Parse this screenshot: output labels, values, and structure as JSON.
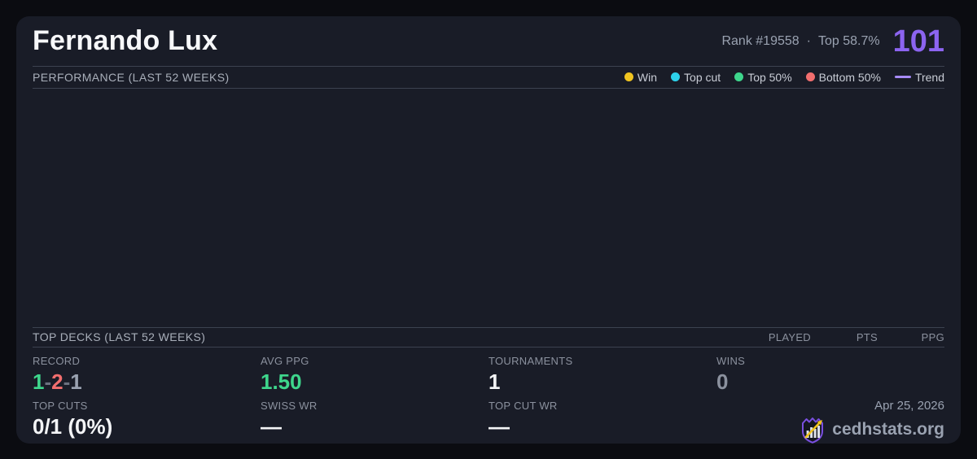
{
  "header": {
    "player_name": "Fernando Lux",
    "rank_text": "Rank #19558",
    "separator": "·",
    "top_percent": "Top 58.7%",
    "score": "101",
    "score_color": "#8c64f0"
  },
  "performance": {
    "title": "PERFORMANCE (LAST 52 WEEKS)",
    "legend": [
      {
        "label": "Win",
        "color": "#f0c420",
        "type": "dot"
      },
      {
        "label": "Top cut",
        "color": "#2dd2eb",
        "type": "dot"
      },
      {
        "label": "Top 50%",
        "color": "#3ed68c",
        "type": "dot"
      },
      {
        "label": "Bottom 50%",
        "color": "#f26e6e",
        "type": "dot"
      },
      {
        "label": "Trend",
        "color": "#a78bfa",
        "type": "line"
      }
    ],
    "chart_rows": []
  },
  "top_decks": {
    "title": "TOP DECKS (LAST 52 WEEKS)",
    "columns": [
      "PLAYED",
      "PTS",
      "PPG"
    ],
    "rows": []
  },
  "stats": {
    "record": {
      "label": "RECORD",
      "parts": [
        {
          "text": "1",
          "color": "#3ed68c"
        },
        {
          "text": "-",
          "color": "#6b7180"
        },
        {
          "text": "2",
          "color": "#f26e6e"
        },
        {
          "text": "-",
          "color": "#6b7180"
        },
        {
          "text": "1",
          "color": "#9aa2b1"
        }
      ]
    },
    "avg_ppg": {
      "label": "AVG PPG",
      "value": "1.50",
      "color": "#3ed68c"
    },
    "tournaments": {
      "label": "TOURNAMENTS",
      "value": "1"
    },
    "wins": {
      "label": "WINS",
      "value": "0",
      "color": "#8b919e"
    },
    "top_cuts": {
      "label": "TOP CUTS",
      "value": "0/1 (0%)"
    },
    "swiss_wr": {
      "label": "SWISS WR",
      "value": "—"
    },
    "top_cut_wr": {
      "label": "TOP CUT WR",
      "value": "—"
    }
  },
  "footer": {
    "date": "Apr 25, 2026",
    "brand": "cedhstats.org"
  },
  "colors": {
    "page_bg": "#0b0c11",
    "card_bg": "#191c27",
    "divider": "#3c4250",
    "accent_purple": "#8c64f0",
    "trend_purple": "#a78bfa",
    "win_yellow": "#f0c420",
    "top_cut_cyan": "#2dd2eb",
    "top50_green": "#3ed68c",
    "bottom50_red": "#f26e6e"
  }
}
